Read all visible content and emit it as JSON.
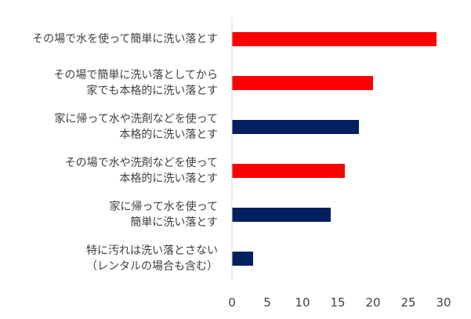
{
  "chart_data": {
    "type": "bar",
    "orientation": "horizontal",
    "categories": [
      [
        "その場で水を使って簡単に洗い落とす"
      ],
      [
        "その場で簡単に洗い落としてから",
        "家でも本格的に洗い落とす"
      ],
      [
        "家に帰って水や洗剤などを使って",
        "本格的に洗い落とす"
      ],
      [
        "その場で水や洗剤などを使って",
        "本格的に洗い落とす"
      ],
      [
        "家に帰って水を使って",
        "簡単に洗い落とす"
      ],
      [
        "特に汚れは洗い落とさない",
        "（レンタルの場合も含む）"
      ]
    ],
    "values": [
      29,
      20,
      18,
      16,
      14,
      3
    ],
    "bar_colors": [
      "#ff0000",
      "#ff0000",
      "#002060",
      "#ff0000",
      "#002060",
      "#002060"
    ],
    "xlim": [
      0,
      30
    ],
    "xticks": [
      "0",
      "5",
      "10",
      "15",
      "20",
      "25",
      "30"
    ],
    "title": "",
    "xlabel": "",
    "ylabel": "",
    "grid": false,
    "legend": "none"
  }
}
